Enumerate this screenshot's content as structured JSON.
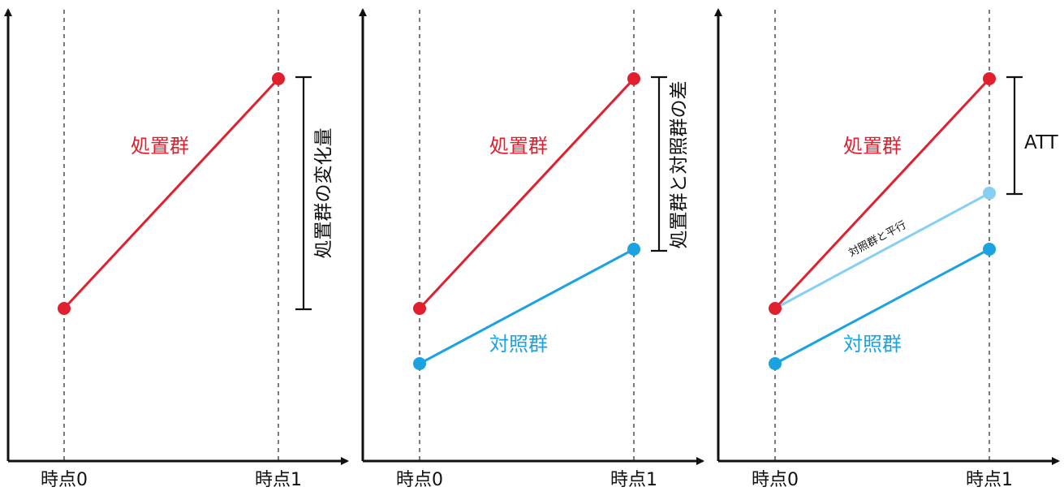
{
  "colors": {
    "treated": "#e0202e",
    "control": "#1aa3e0",
    "parallel": "#86cff0",
    "axis": "#111111"
  },
  "panels": [
    {
      "x_ticks": [
        "時点0",
        "時点1"
      ],
      "group_labels": {
        "treated": "処置群"
      },
      "bracket_label": "処置群の変化量"
    },
    {
      "x_ticks": [
        "時点0",
        "時点1"
      ],
      "group_labels": {
        "treated": "処置群",
        "control": "対照群"
      },
      "bracket_label": "処置群と対照群の差"
    },
    {
      "x_ticks": [
        "時点0",
        "時点1"
      ],
      "group_labels": {
        "treated": "処置群",
        "control": "対照群"
      },
      "parallel_label": "対照群と平行",
      "bracket_label": "ATT"
    }
  ]
}
